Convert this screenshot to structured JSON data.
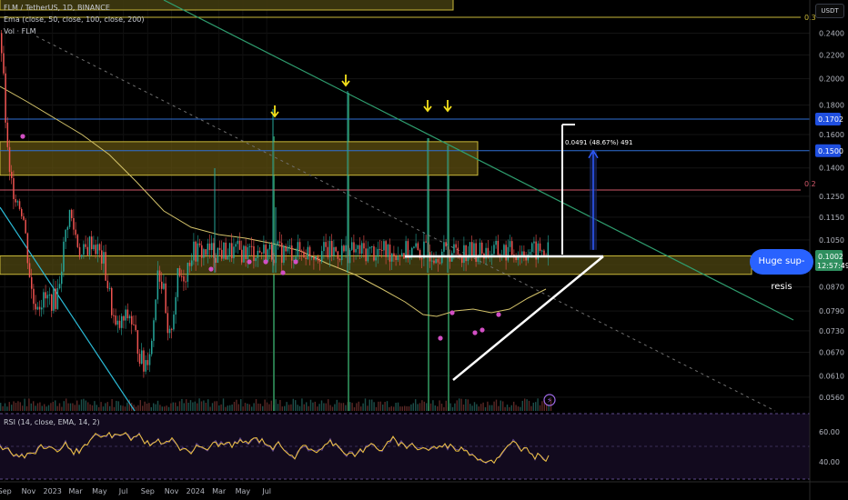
{
  "header": {
    "symbol_line": "FLM / TetherUS, 1D, BINANCE",
    "ema_line": "Ema (close, 50, close, 100, close, 200)",
    "vol_line": "Vol · FLM",
    "currency_label": "USDT"
  },
  "rsi": {
    "legend": "RSI (14, close, EMA, 14, 2)",
    "levels": [
      "60.00",
      "40.00"
    ]
  },
  "fib_labels": [
    "0.3",
    "0.2"
  ],
  "price_tags": {
    "tag_1702": "0.1702",
    "tag_1500": "0.1500",
    "tag_1002": "0.1002",
    "countdown": "12:57:49"
  },
  "measure_label": "0.0491 (48.67%) 491",
  "callout_text": "Huge sup-resis",
  "colors": {
    "background": "#000000",
    "up_candle": "#26a69a",
    "down_candle": "#ef5350",
    "zone_border": "#c9b83a",
    "ema_line": "#d4c36a",
    "rsi_line": "#f0c33c",
    "tag_blue": "#2962ff",
    "trendline_green": "#2f9e6f",
    "channel_cyan": "#2bbad6",
    "fib_red": "#d1586a",
    "marker_magenta": "#d24fc4",
    "arrow_yellow": "#f5e11b"
  },
  "chart_data": {
    "type": "candlestick",
    "title": "FLM / TetherUS, 1D, BINANCE",
    "y_scale": "log",
    "ylim": [
      0.054,
      0.27
    ],
    "y_ticks": [
      "0.2400",
      "0.2200",
      "0.2000",
      "0.1800",
      "0.1600",
      "0.1400",
      "0.1250",
      "0.1150",
      "0.1050",
      "0.0950",
      "0.0870",
      "0.0790",
      "0.0730",
      "0.0670",
      "0.0610",
      "0.0560"
    ],
    "x_ticks": [
      "Sep",
      "Nov",
      "2023",
      "Mar",
      "May",
      "Jul",
      "Sep",
      "Nov",
      "2024",
      "Mar",
      "May",
      "Jul"
    ],
    "price_path": [
      [
        "2022-08-20",
        0.24
      ],
      [
        "2022-09-10",
        0.135
      ],
      [
        "2022-10-15",
        0.118
      ],
      [
        "2022-11-10",
        0.082
      ],
      [
        "2023-01-10",
        0.083
      ],
      [
        "2023-02-10",
        0.118
      ],
      [
        "2023-03-15",
        0.098
      ],
      [
        "2023-04-10",
        0.105
      ],
      [
        "2023-05-10",
        0.096
      ],
      [
        "2023-06-10",
        0.073
      ],
      [
        "2023-07-15",
        0.078
      ],
      [
        "2023-08-20",
        0.063
      ],
      [
        "2023-09-10",
        0.07
      ],
      [
        "2023-09-25",
        0.095
      ],
      [
        "2023-10-10",
        0.085
      ],
      [
        "2023-10-22",
        0.068
      ],
      [
        "2023-11-15",
        0.09
      ],
      [
        "2023-12-05",
        0.092
      ],
      [
        "2023-12-20",
        0.1002
      ]
    ],
    "horizontal_levels": [
      0.1702,
      0.15
    ],
    "resistance_zones": [
      [
        0.136,
        0.1555
      ],
      [
        0.0915,
        0.0985
      ]
    ],
    "measurement": {
      "from": 0.1009,
      "to": 0.15,
      "label": "0.0491 (48.67%) 491"
    },
    "annotations": [
      "Huge sup-resis"
    ],
    "rsi_levels": [
      60,
      40
    ]
  }
}
